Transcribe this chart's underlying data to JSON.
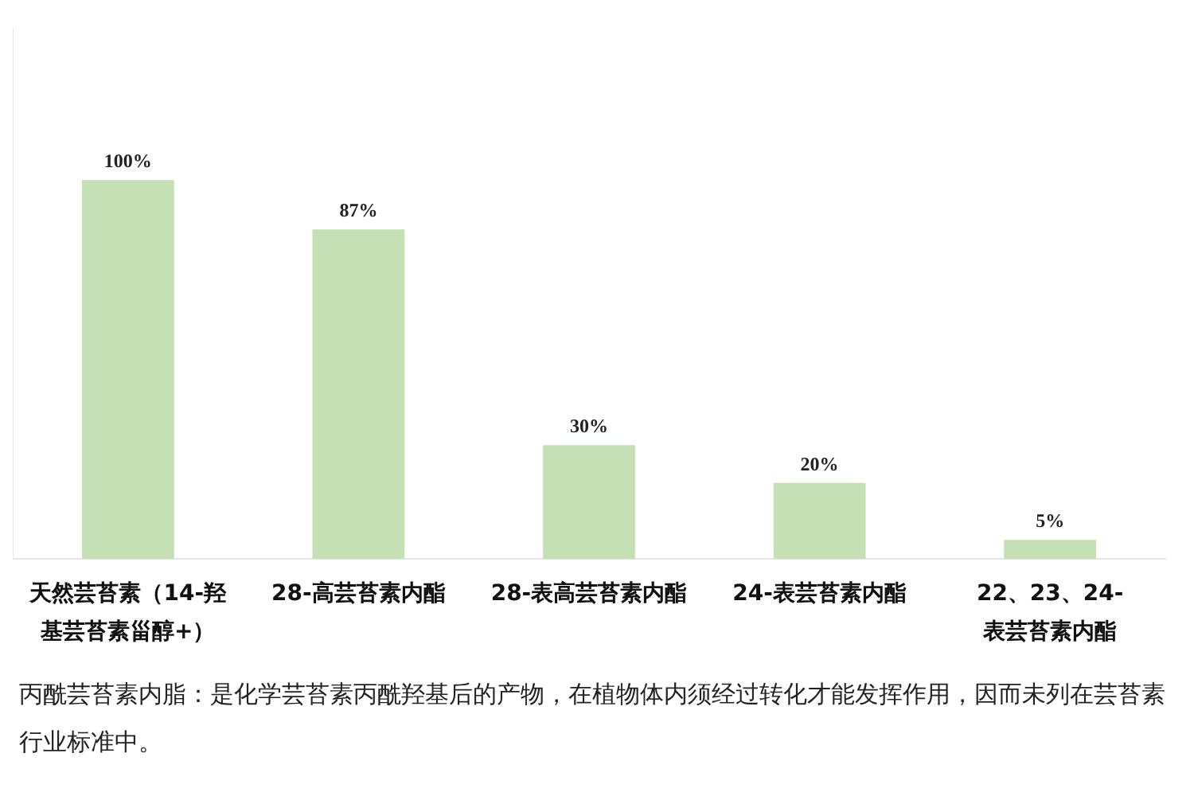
{
  "chart_data": {
    "type": "bar",
    "categories": [
      "天然芸苔素（14-羟基芸苔素甾醇+）",
      "28-高芸苔素内酯",
      "28-表高芸苔素内酯",
      "24-表芸苔素内酯",
      "22、23、24-表芸苔素内酯"
    ],
    "values": [
      100,
      87,
      30,
      20,
      5
    ],
    "value_labels": [
      "100%",
      "87%",
      "30%",
      "20%",
      "5%"
    ],
    "color": "#c5e0b4",
    "ylim": [
      0,
      140
    ],
    "grid": false,
    "legend": false,
    "tick_labels": "x",
    "annotations": [
      "丙酰芸苔素内脂：是化学芸苔素丙酰羟基后的产物，在植物体内须经过转化才能发挥作用，因而未列在芸苔素行业标准中。"
    ]
  }
}
